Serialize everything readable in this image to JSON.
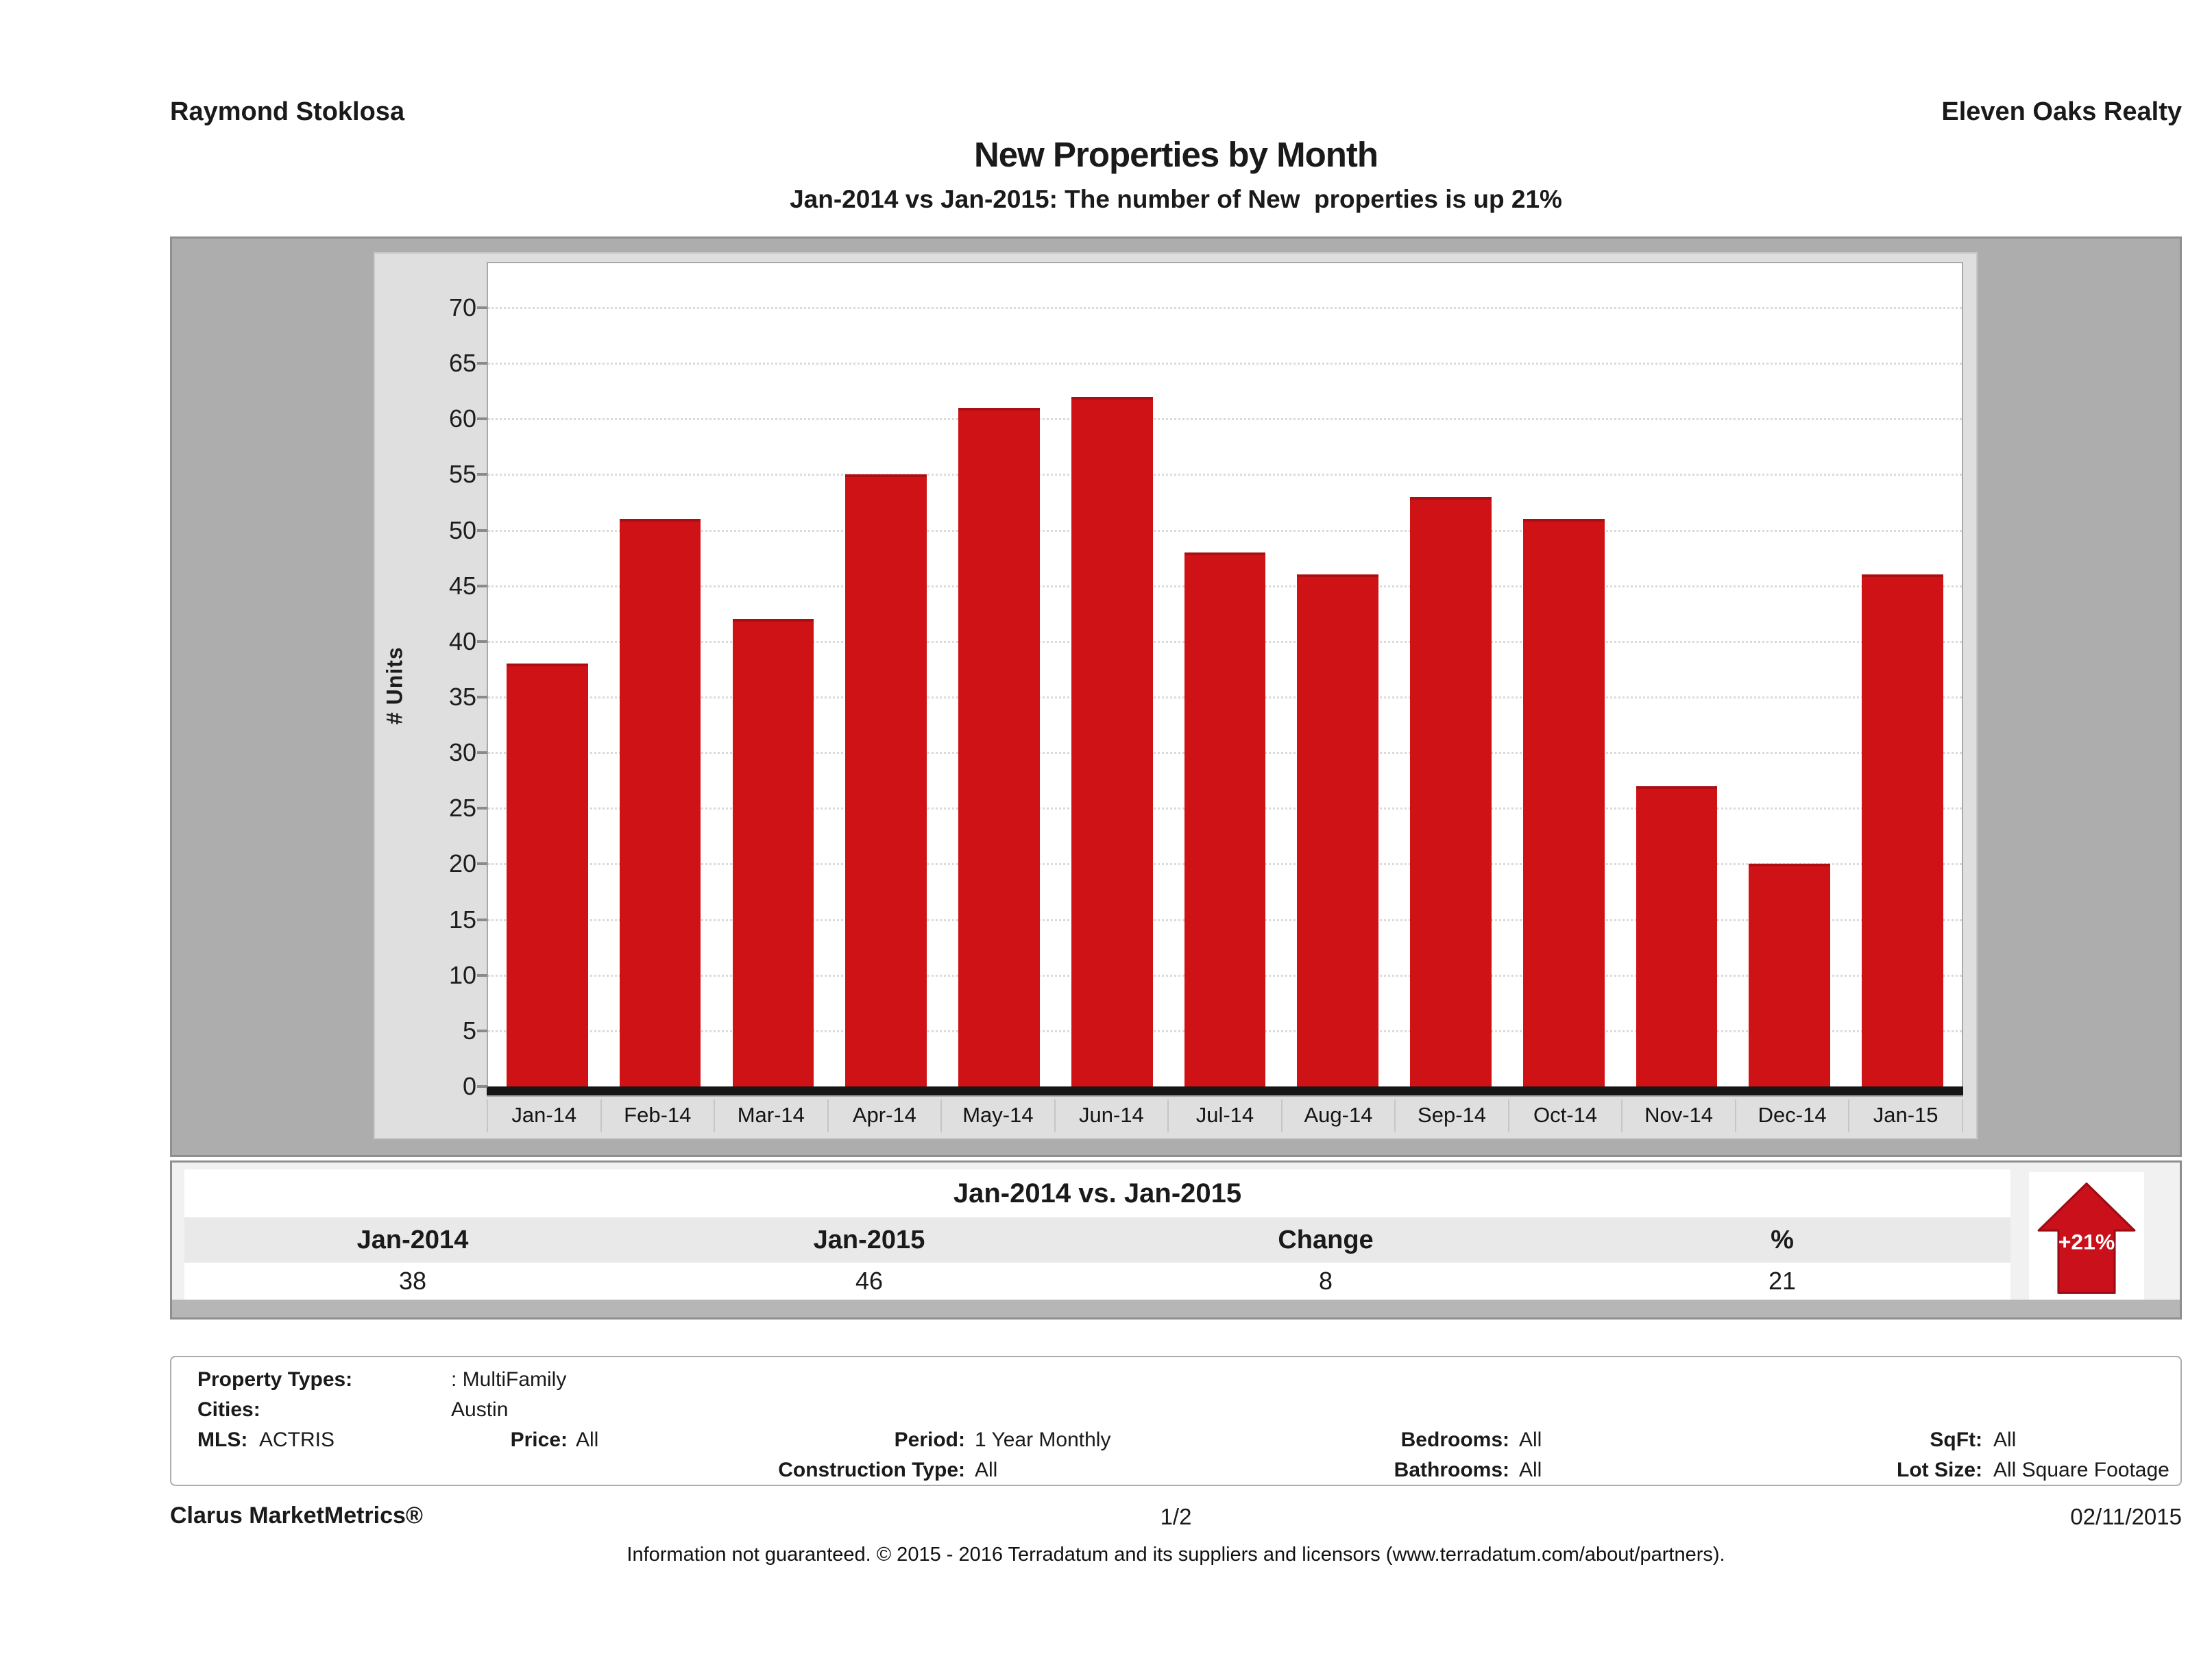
{
  "header": {
    "agent": "Raymond Stoklosa",
    "brokerage": "Eleven Oaks Realty",
    "title": "New Properties by Month",
    "subtitle": "Jan-2014 vs Jan-2015: The number of New  properties is up 21%"
  },
  "chart_data": {
    "type": "bar",
    "title": "New Properties by Month",
    "categories": [
      "Jan-14",
      "Feb-14",
      "Mar-14",
      "Apr-14",
      "May-14",
      "Jun-14",
      "Jul-14",
      "Aug-14",
      "Sep-14",
      "Oct-14",
      "Nov-14",
      "Dec-14",
      "Jan-15"
    ],
    "values": [
      38,
      51,
      42,
      55,
      61,
      62,
      48,
      46,
      53,
      51,
      27,
      20,
      46
    ],
    "xlabel": "",
    "ylabel": "# Units",
    "ylim": [
      0,
      74
    ],
    "ytick_step": 5,
    "grid": true,
    "legend_position": "none",
    "bar_color": "#cf1216"
  },
  "comparison": {
    "title": "Jan-2014 vs. Jan-2015",
    "columns": [
      "Jan-2014",
      "Jan-2015",
      "Change",
      "%"
    ],
    "values": [
      "38",
      "46",
      "8",
      "21"
    ],
    "badge_label": "+21%",
    "badge_color": "#c9101b"
  },
  "filters": {
    "property_types_label": "Property Types:",
    "property_types_value": ": MultiFamily",
    "cities_label": "Cities:",
    "cities_value": "Austin",
    "mls_label": "MLS:",
    "mls_value": "ACTRIS",
    "price_label": "Price:",
    "price_value": "All",
    "period_label": "Period:",
    "period_value": "1 Year Monthly",
    "bedrooms_label": "Bedrooms:",
    "bedrooms_value": "All",
    "sqft_label": "SqFt:",
    "sqft_value": "All",
    "construction_label": "Construction Type:",
    "construction_value": "All",
    "bathrooms_label": "Bathrooms:",
    "bathrooms_value": "All",
    "lot_size_label": "Lot Size:",
    "lot_size_value": "All Square Footage"
  },
  "footer": {
    "brand": "Clarus MarketMetrics®",
    "page": "1/2",
    "date": "02/11/2015",
    "disclaimer": "Information not guaranteed. © 2015 - 2016 Terradatum and its suppliers and licensors (www.terradatum.com/about/partners)."
  }
}
